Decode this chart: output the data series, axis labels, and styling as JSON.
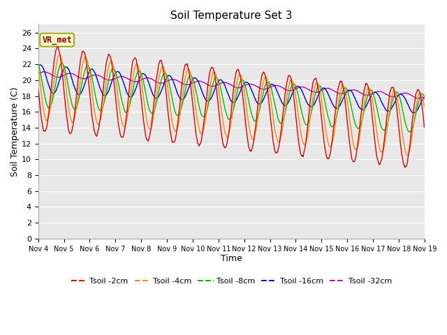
{
  "title": "Soil Temperature Set 3",
  "xlabel": "Time",
  "ylabel": "Soil Temperature (C)",
  "ylim": [
    0,
    27
  ],
  "yticks": [
    0,
    2,
    4,
    6,
    8,
    10,
    12,
    14,
    16,
    18,
    20,
    22,
    24,
    26
  ],
  "colors": {
    "Tsoil -2cm": "#dd0000",
    "Tsoil -4cm": "#ff8800",
    "Tsoil -8cm": "#00bb00",
    "Tsoil -16cm": "#0000cc",
    "Tsoil -32cm": "#bb00bb"
  },
  "series_labels": [
    "Tsoil -2cm",
    "Tsoil -4cm",
    "Tsoil -8cm",
    "Tsoil -16cm",
    "Tsoil -32cm"
  ],
  "xtick_labels": [
    "Nov 4",
    "Nov 5",
    "Nov 6",
    "Nov 7",
    "Nov 8",
    "Nov 9",
    "Nov 10",
    "Nov 11",
    "Nov 12",
    "Nov 13",
    "Nov 14",
    "Nov 15",
    "Nov 16",
    "Nov 17",
    "Nov 18",
    "Nov 19"
  ],
  "annotation_text": "VR_met",
  "annotation_fg": "#8b0000",
  "annotation_bg": "#ffffcc",
  "annotation_edge": "#999900",
  "plot_bg_color": "#e8e8e8",
  "fig_bg_color": "#ffffff",
  "linewidth": 1.0,
  "title_fontsize": 11,
  "axis_fontsize": 9,
  "tick_fontsize": 8
}
